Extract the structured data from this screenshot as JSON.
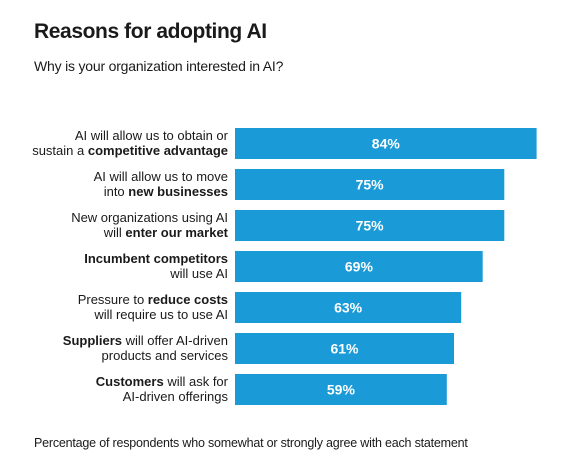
{
  "header": {
    "title": "Reasons for adopting AI",
    "subtitle": "Why is your organization interested in AI?"
  },
  "footer": {
    "note": "Percentage of respondents who somewhat or strongly agree with each statement"
  },
  "colors": {
    "bar": "#1a9bd7",
    "text": "#1a1a1a",
    "value_text": "#ffffff"
  },
  "chart_data": {
    "type": "bar",
    "orientation": "horizontal",
    "categories": [
      "AI will allow us to obtain or sustain a competitive advantage",
      "AI will allow us to move into new businesses",
      "New organizations using AI will enter our market",
      "Incumbent competitors will use AI",
      "Pressure to reduce costs will require us to use AI",
      "Suppliers will offer AI-driven products and services",
      "Customers will ask for AI-driven offerings"
    ],
    "label_lines": [
      [
        [
          {
            "t": "AI will allow us to obtain or",
            "b": false
          }
        ],
        [
          {
            "t": "sustain a ",
            "b": false
          },
          {
            "t": "competitive advantage",
            "b": true
          }
        ]
      ],
      [
        [
          {
            "t": "AI will allow us to move",
            "b": false
          }
        ],
        [
          {
            "t": "into ",
            "b": false
          },
          {
            "t": "new businesses",
            "b": true
          }
        ]
      ],
      [
        [
          {
            "t": "New organizations using AI",
            "b": false
          }
        ],
        [
          {
            "t": "will ",
            "b": false
          },
          {
            "t": "enter our market",
            "b": true
          }
        ]
      ],
      [
        [
          {
            "t": "Incumbent competitors",
            "b": true
          }
        ],
        [
          {
            "t": "will use AI",
            "b": false
          }
        ]
      ],
      [
        [
          {
            "t": "Pressure to ",
            "b": false
          },
          {
            "t": "reduce costs",
            "b": true
          }
        ],
        [
          {
            "t": "will require us to use AI",
            "b": false
          }
        ]
      ],
      [
        [
          {
            "t": "Suppliers",
            "b": true
          },
          {
            "t": " will offer AI-driven",
            "b": false
          }
        ],
        [
          {
            "t": "products and services",
            "b": false
          }
        ]
      ],
      [
        [
          {
            "t": "Customers",
            "b": true
          },
          {
            "t": " will ask for",
            "b": false
          }
        ],
        [
          {
            "t": "AI-driven offerings",
            "b": false
          }
        ]
      ]
    ],
    "values": [
      84,
      75,
      75,
      69,
      63,
      61,
      59
    ],
    "value_labels": [
      "84%",
      "75%",
      "75%",
      "69%",
      "63%",
      "61%",
      "59%"
    ],
    "unit": "%",
    "xlim": [
      0,
      100
    ],
    "title": "Reasons for adopting AI",
    "subtitle": "Why is your organization interested in AI?",
    "xlabel": "",
    "ylabel": "",
    "grid": false,
    "legend": "none"
  }
}
